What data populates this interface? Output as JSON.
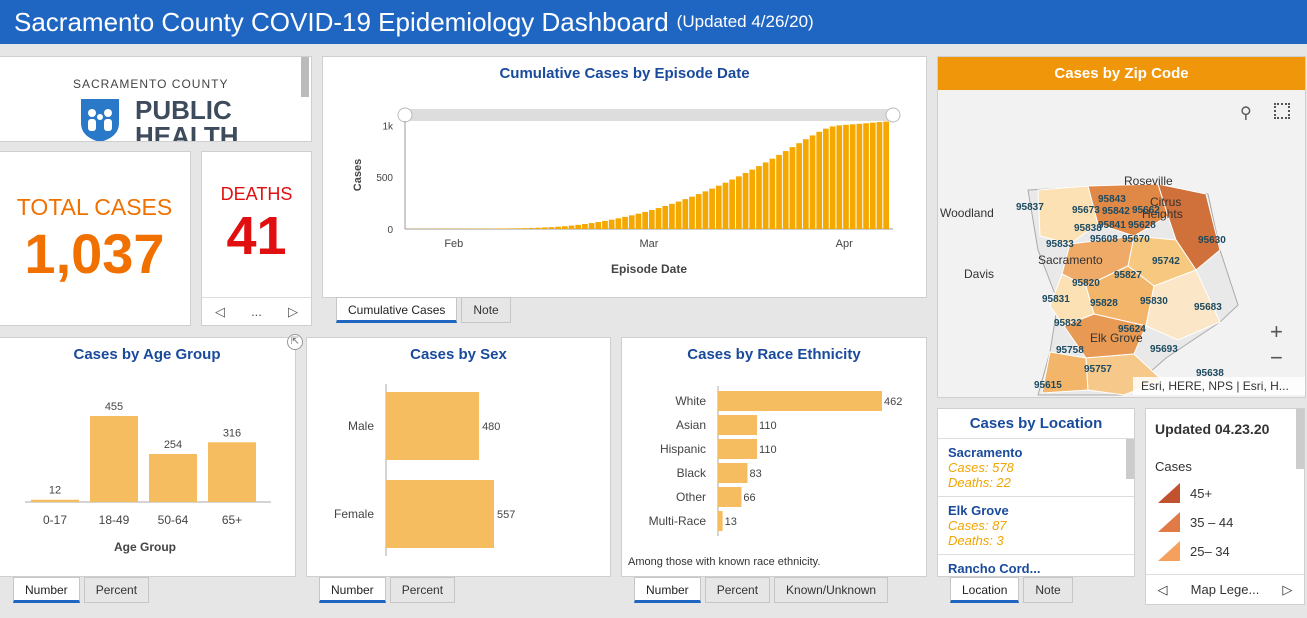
{
  "header": {
    "title": "Sacramento County COVID-19 Epidemiology Dashboard",
    "updated": "(Updated 4/26/20)"
  },
  "logo": {
    "line1": "SACRAMENTO COUNTY",
    "line2": "PUBLIC",
    "line3": "HEALTH"
  },
  "total_cases": {
    "label": "TOTAL CASES",
    "value": "1,037"
  },
  "deaths": {
    "label": "DEATHS",
    "value": "41",
    "pager": "..."
  },
  "cumulative": {
    "title": "Cumulative Cases by Episode Date",
    "tabs": [
      "Cumulative Cases",
      "Note"
    ],
    "ylabel": "Cases",
    "xlabel": "Episode Date",
    "yticks": [
      "1k",
      "500",
      "0"
    ],
    "xticks": [
      "Feb",
      "Mar",
      "Apr"
    ]
  },
  "age": {
    "title": "Cases by Age Group",
    "xlabel": "Age Group",
    "tabs": [
      "Number",
      "Percent"
    ]
  },
  "sex": {
    "title": "Cases by Sex",
    "tabs": [
      "Number",
      "Percent"
    ]
  },
  "race": {
    "title": "Cases by Race Ethnicity",
    "note": "Among those with known race ethnicity.",
    "tabs": [
      "Number",
      "Percent",
      "Known/Unknown"
    ]
  },
  "zip": {
    "title": "Cases by Zip Code",
    "attribution": "Esri, HERE, NPS | Esri, H...",
    "places": [
      "Roseville",
      "Woodland",
      "Davis",
      "Sacramento",
      "Elk Grove",
      "Citrus",
      "Heights"
    ],
    "zips": [
      "95837",
      "95673",
      "95843",
      "95842",
      "95662",
      "95838",
      "95841",
      "95628",
      "95608",
      "95670",
      "95833",
      "95630",
      "95742",
      "95820",
      "95827",
      "95831",
      "95828",
      "95830",
      "95683",
      "95832",
      "95624",
      "95758",
      "95693",
      "95757",
      "95638",
      "95615"
    ],
    "zoom_in": "+",
    "zoom_out": "−"
  },
  "location": {
    "title": "Cases by Location",
    "items": [
      {
        "name": "Sacramento",
        "cases": "Cases: 578",
        "deaths": "Deaths: 22"
      },
      {
        "name": "Elk Grove",
        "cases": "Cases: 87",
        "deaths": "Deaths: 3"
      },
      {
        "name": "Rancho Cord...",
        "cases": "",
        "deaths": ""
      }
    ],
    "tabs": [
      "Location",
      "Note"
    ]
  },
  "legend": {
    "updated": "Updated 04.23.20",
    "label": "Cases",
    "rows": [
      {
        "label": "45+",
        "color": "#c0522e"
      },
      {
        "label": "35 – 44",
        "color": "#e07b47"
      },
      {
        "label": "25– 34",
        "color": "#f5a05d"
      }
    ],
    "pager": "Map Lege..."
  },
  "chart_data": [
    {
      "type": "bar",
      "title": "Cumulative Cases by Episode Date",
      "xlabel": "Episode Date",
      "ylabel": "Cases",
      "ylim": [
        0,
        1100
      ],
      "x_range": [
        "Jan",
        "Apr"
      ],
      "series": [
        {
          "values": [
            2,
            2,
            2,
            2,
            3,
            3,
            3,
            3,
            3,
            4,
            4,
            4,
            4,
            5,
            5,
            6,
            7,
            8,
            10,
            12,
            15,
            18,
            22,
            27,
            33,
            40,
            48,
            57,
            67,
            78,
            90,
            103,
            117,
            132,
            148,
            165,
            183,
            202,
            222,
            243,
            265,
            288,
            312,
            337,
            363,
            390,
            418,
            447,
            477,
            508,
            540,
            573,
            607,
            642,
            678,
            715,
            752,
            790,
            828,
            866,
            903,
            938,
            968,
            990,
            1000,
            1005,
            1010,
            1015,
            1020,
            1026,
            1032,
            1037
          ]
        }
      ]
    },
    {
      "type": "bar",
      "title": "Cases by Age Group",
      "xlabel": "Age Group",
      "categories": [
        "0-17",
        "18-49",
        "50-64",
        "65+"
      ],
      "values": [
        12,
        455,
        254,
        316
      ]
    },
    {
      "type": "bar",
      "title": "Cases by Sex",
      "orientation": "horizontal",
      "categories": [
        "Male",
        "Female"
      ],
      "values": [
        480,
        557
      ]
    },
    {
      "type": "bar",
      "title": "Cases by Race Ethnicity",
      "orientation": "horizontal",
      "categories": [
        "White",
        "Asian",
        "Hispanic",
        "Black",
        "Other",
        "Multi-Race"
      ],
      "values": [
        462,
        110,
        110,
        83,
        66,
        13
      ]
    }
  ]
}
